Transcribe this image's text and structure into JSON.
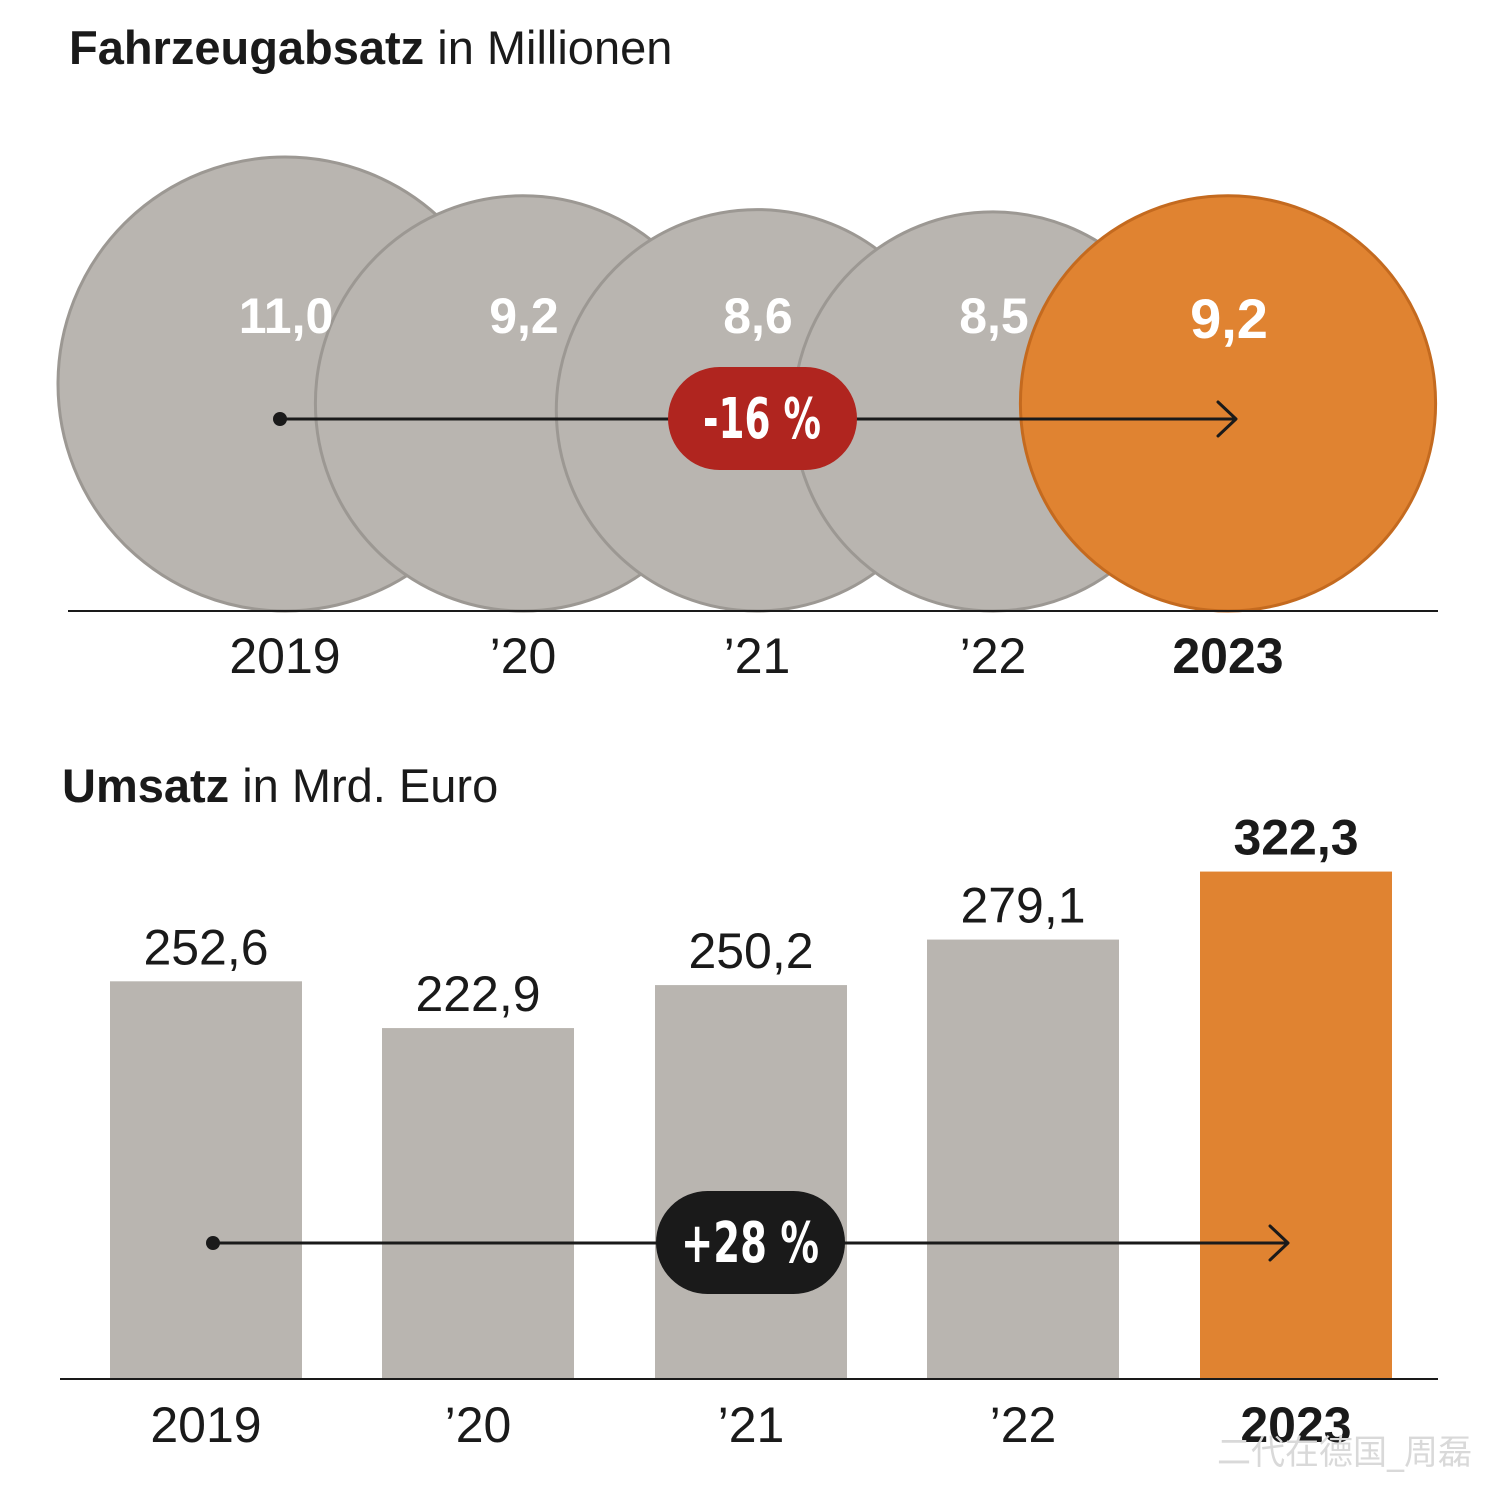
{
  "colors": {
    "neutral_fill": "#b9b5b0",
    "neutral_stroke": "#9c9893",
    "highlight": "#e08331",
    "highlight_stroke": "#c46a1f",
    "badge_negative": "#b0251f",
    "badge_positive": "#1a1a1a",
    "axis": "#1a1a1a",
    "text_dark": "#1a1a1a",
    "text_light": "#ffffff"
  },
  "chart_data": [
    {
      "type": "bubble",
      "title_bold": "Fahrzeugabsatz",
      "title_rest": " in Millionen",
      "categories": [
        "2019",
        "’20",
        "’21",
        "’22",
        "2023"
      ],
      "values": [
        11.0,
        9.2,
        8.6,
        8.5,
        9.2
      ],
      "value_labels": [
        "11,0",
        "9,2",
        "8,6",
        "8,5",
        "9,2"
      ],
      "highlight_index": 4,
      "change_label": "-16 %"
    },
    {
      "type": "bar",
      "title_bold": "Umsatz",
      "title_rest": " in Mrd. Euro",
      "categories": [
        "2019",
        "’20",
        "’21",
        "’22",
        "2023"
      ],
      "values": [
        252.6,
        222.9,
        250.2,
        279.1,
        322.3
      ],
      "value_labels": [
        "252,6",
        "222,9",
        "250,2",
        "279,1",
        "322,3"
      ],
      "highlight_index": 4,
      "change_label": "+28 %"
    }
  ],
  "watermark": "二代在德国_周磊"
}
